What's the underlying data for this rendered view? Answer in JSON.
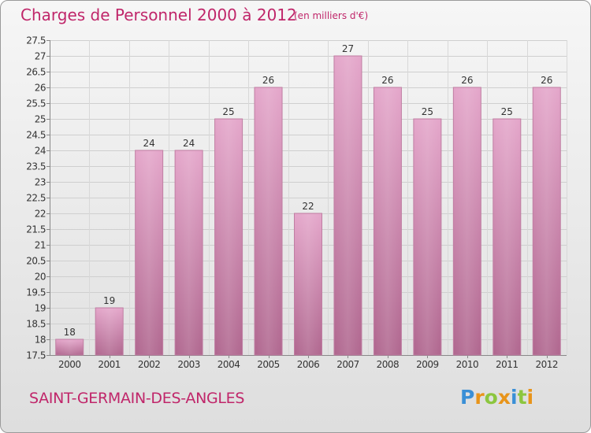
{
  "header": {
    "title": "Charges de Personnel 2000 à 2012",
    "subtitle": "(en milliers d'€)"
  },
  "footer": {
    "commune": "SAINT-GERMAIN-DES-ANGLES",
    "logo_letters": [
      "P",
      "r",
      "o",
      "x",
      "i",
      "t",
      "i"
    ],
    "logo_colors": [
      "#3a8fd6",
      "#e8941a",
      "#8cc63f",
      "#e8941a",
      "#3a8fd6",
      "#8cc63f",
      "#e8941a"
    ]
  },
  "chart_data": {
    "type": "bar",
    "categories": [
      "2000",
      "2001",
      "2002",
      "2003",
      "2004",
      "2005",
      "2006",
      "2007",
      "2008",
      "2009",
      "2010",
      "2011",
      "2012"
    ],
    "values": [
      18,
      19,
      24,
      24,
      25,
      26,
      22,
      27,
      26,
      25,
      26,
      25,
      26
    ],
    "value_labels": [
      "18",
      "19",
      "24",
      "24",
      "25",
      "26",
      "22",
      "27",
      "26",
      "25",
      "26",
      "25",
      "26"
    ],
    "ylim": [
      17.5,
      27.5
    ],
    "yticks": [
      17.5,
      18,
      18.5,
      19,
      19.5,
      20,
      20.5,
      21,
      21.5,
      22,
      22.5,
      23,
      23.5,
      24,
      24.5,
      25,
      25.5,
      26,
      26.5,
      27,
      27.5
    ],
    "ytick_labels": [
      "17.5",
      "18",
      "18.5",
      "19",
      "19.5",
      "20",
      "20.5",
      "21",
      "21.5",
      "22",
      "22.5",
      "23",
      "23.5",
      "24",
      "24.5",
      "25",
      "25.5",
      "26",
      "26.5",
      "27",
      "27.5"
    ],
    "grid": true,
    "bar_color": "#d48db5",
    "text_color": "#333333"
  }
}
